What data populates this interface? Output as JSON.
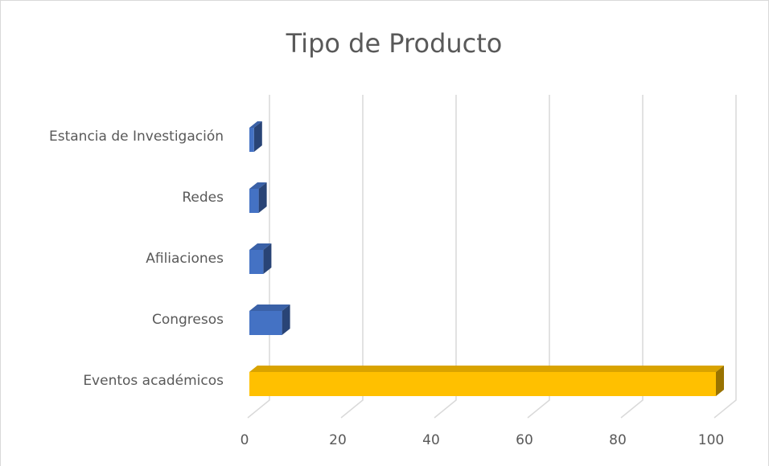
{
  "chart_data": {
    "type": "bar3d_horizontal",
    "title": "Tipo de Producto",
    "categories": [
      "Eventos académicos",
      "Congresos",
      "Afiliaciones",
      "Redes",
      "Estancia de Investigación"
    ],
    "values": [
      100,
      7,
      3,
      2,
      1
    ],
    "colors": [
      "#ffc000",
      "#4472c4",
      "#4472c4",
      "#4472c4",
      "#4472c4"
    ],
    "xlim": [
      0,
      100
    ],
    "xticks": [
      0,
      20,
      40,
      60,
      80,
      100
    ],
    "grid": true
  }
}
